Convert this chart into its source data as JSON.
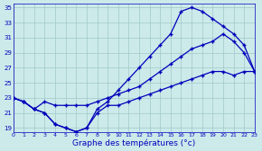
{
  "xlabel": "Graphe des températures (°c)",
  "hours": [
    0,
    1,
    2,
    3,
    4,
    5,
    6,
    7,
    8,
    9,
    10,
    11,
    12,
    13,
    14,
    15,
    16,
    17,
    18,
    19,
    20,
    21,
    22,
    23
  ],
  "line_min": [
    23.0,
    22.5,
    21.5,
    21.0,
    19.5,
    19.0,
    18.5,
    19.0,
    21.0,
    22.0,
    22.0,
    22.5,
    23.0,
    23.5,
    24.0,
    24.5,
    25.0,
    25.5,
    26.0,
    26.5,
    26.5,
    26.0,
    26.5,
    26.5
  ],
  "line_max": [
    23.0,
    22.5,
    21.5,
    21.0,
    19.5,
    19.0,
    18.5,
    19.0,
    21.5,
    22.5,
    24.0,
    25.5,
    27.0,
    28.5,
    30.0,
    31.5,
    34.5,
    35.0,
    34.5,
    33.5,
    32.5,
    31.5,
    30.0,
    26.5
  ],
  "line_mid": [
    23.0,
    22.5,
    21.5,
    22.5,
    22.0,
    22.0,
    22.0,
    22.0,
    22.5,
    23.0,
    23.5,
    24.0,
    24.5,
    25.5,
    26.5,
    27.5,
    28.5,
    29.5,
    30.0,
    30.5,
    31.5,
    30.5,
    29.0,
    26.5
  ],
  "line_color": "#0000bb",
  "bg_color": "#cceaea",
  "grid_color": "#a0c8c8",
  "ylim": [
    18.5,
    35.5
  ],
  "yticks": [
    19,
    21,
    23,
    25,
    27,
    29,
    31,
    33,
    35
  ],
  "xlim": [
    0,
    23
  ]
}
